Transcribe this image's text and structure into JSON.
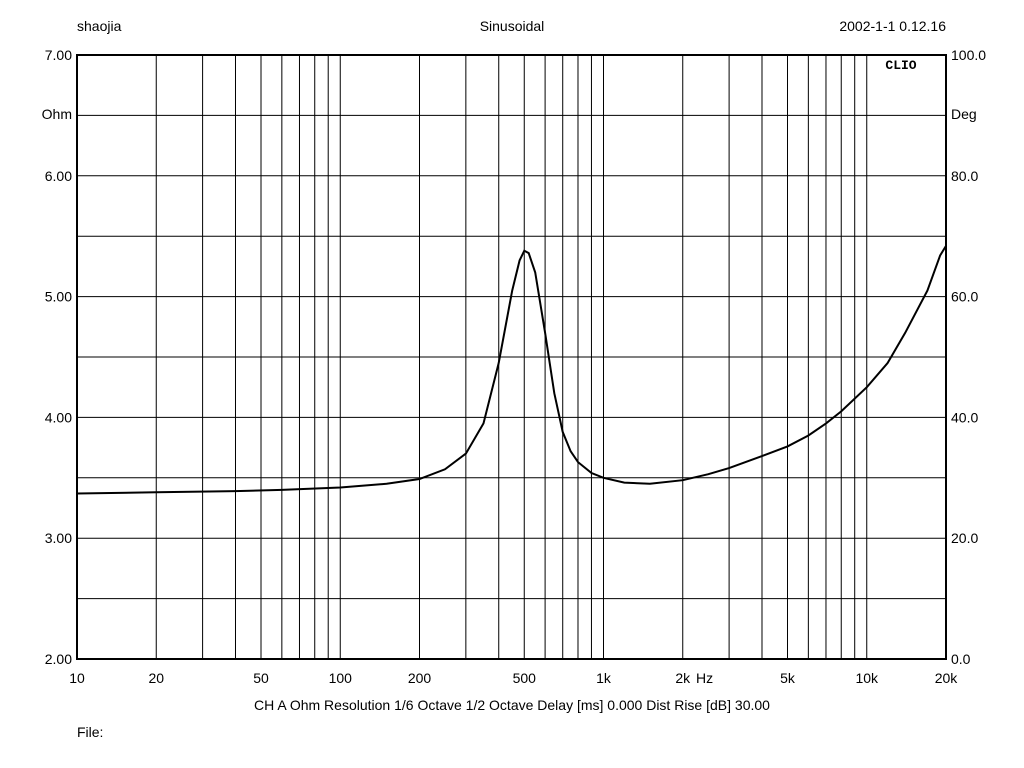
{
  "header": {
    "left": "shaojia",
    "center": "Sinusoidal",
    "right": "2002-1-1 0.12.16"
  },
  "footer": {
    "settings": "CH A   Ohm   Resolution 1/6 Octave   1/2 Octave   Delay [ms] 0.000   Dist Rise [dB] 30.00",
    "file_label": "File:"
  },
  "brand": "CLIO",
  "chart_data": {
    "type": "line",
    "x_scale": "log",
    "xlim": [
      10,
      20000
    ],
    "x_ticks": [
      {
        "value": 10,
        "label": "10"
      },
      {
        "value": 20,
        "label": "20"
      },
      {
        "value": 50,
        "label": "50"
      },
      {
        "value": 100,
        "label": "100"
      },
      {
        "value": 200,
        "label": "200"
      },
      {
        "value": 500,
        "label": "500"
      },
      {
        "value": 1000,
        "label": "1k"
      },
      {
        "value": 2000,
        "label": "2k"
      },
      {
        "value": 5000,
        "label": "5k"
      },
      {
        "value": 10000,
        "label": "10k"
      },
      {
        "value": 20000,
        "label": "20k"
      }
    ],
    "xlabel": "Hz",
    "ylim": [
      2.0,
      7.0
    ],
    "y_ticks": [
      "2.00",
      "3.00",
      "4.00",
      "5.00",
      "6.00",
      "7.00"
    ],
    "ylabel": "Ohm",
    "y2lim": [
      0.0,
      100.0
    ],
    "y2_ticks": [
      "0.0",
      "20.0",
      "40.0",
      "60.0",
      "80.0",
      "100.0"
    ],
    "y2label": "Deg",
    "grid": true,
    "line_color": "#000000",
    "series": [
      {
        "x": [
          10,
          20,
          40,
          60,
          100,
          150,
          200,
          250,
          300,
          350,
          400,
          450,
          480,
          500,
          520,
          550,
          600,
          650,
          700,
          750,
          800,
          900,
          1000,
          1200,
          1500,
          2000,
          2500,
          3000,
          4000,
          5000,
          6000,
          7000,
          8000,
          10000,
          12000,
          14000,
          17000,
          19000,
          20000
        ],
        "y": [
          3.37,
          3.38,
          3.39,
          3.4,
          3.42,
          3.45,
          3.49,
          3.57,
          3.7,
          3.95,
          4.45,
          5.05,
          5.3,
          5.38,
          5.36,
          5.2,
          4.7,
          4.2,
          3.88,
          3.72,
          3.63,
          3.54,
          3.5,
          3.46,
          3.45,
          3.48,
          3.53,
          3.58,
          3.68,
          3.76,
          3.85,
          3.95,
          4.05,
          4.25,
          4.45,
          4.7,
          5.05,
          5.34,
          5.42
        ]
      }
    ]
  }
}
